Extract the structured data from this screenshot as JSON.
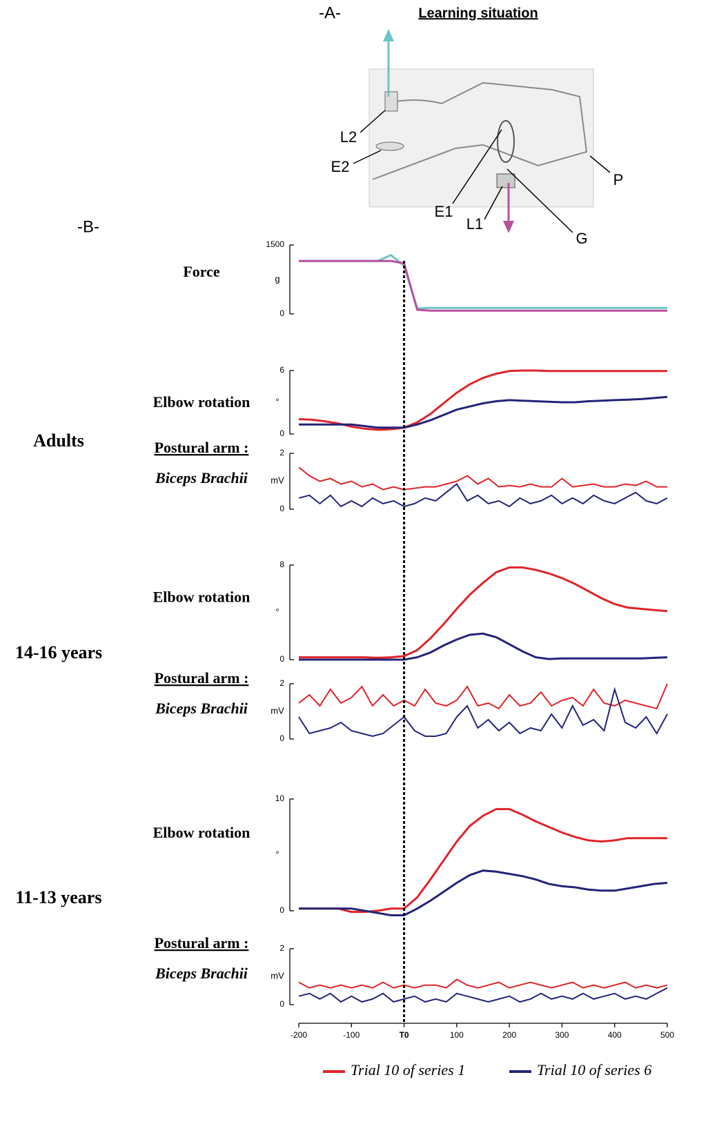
{
  "panel_a": {
    "label": "-A-",
    "title": "Learning situation",
    "labels": [
      "L2",
      "E2",
      "E1",
      "L1",
      "G",
      "P"
    ]
  },
  "panel_b": {
    "label": "-B-"
  },
  "chart_data": [
    {
      "type": "line",
      "title": "Force",
      "y_unit": "g",
      "ylim": [
        0,
        1500
      ],
      "yticks": [
        0,
        1500
      ],
      "x": [
        -200,
        -175,
        -150,
        -125,
        -100,
        -75,
        -50,
        -25,
        0,
        25,
        50,
        75,
        100,
        125,
        150,
        175,
        200,
        225,
        250,
        275,
        300,
        325,
        350,
        375,
        400,
        425,
        450,
        475,
        500
      ],
      "series": [
        {
          "color": "#6cc5c3",
          "values": [
            1150,
            1150,
            1150,
            1150,
            1150,
            1150,
            1150,
            1280,
            1050,
            120,
            130,
            130,
            130,
            130,
            130,
            130,
            130,
            130,
            130,
            130,
            130,
            130,
            130,
            130,
            130,
            130,
            130,
            130,
            130
          ]
        },
        {
          "color": "#b8509e",
          "values": [
            1150,
            1150,
            1150,
            1150,
            1150,
            1150,
            1150,
            1150,
            1100,
            90,
            70,
            70,
            70,
            70,
            70,
            70,
            70,
            70,
            70,
            70,
            70,
            70,
            70,
            70,
            70,
            70,
            70,
            70,
            70
          ]
        }
      ]
    },
    {
      "type": "line",
      "group": "Adults",
      "title": "Elbow rotation",
      "y_unit": "°",
      "ylim": [
        0,
        6
      ],
      "yticks": [
        0,
        6
      ],
      "x": [
        -200,
        -175,
        -150,
        -125,
        -100,
        -75,
        -50,
        -25,
        0,
        25,
        50,
        75,
        100,
        125,
        150,
        175,
        200,
        225,
        250,
        275,
        300,
        325,
        350,
        375,
        400,
        425,
        450,
        475,
        500
      ],
      "series": [
        {
          "color": "#e0232a",
          "values": [
            1.4,
            1.35,
            1.2,
            1.0,
            0.7,
            0.5,
            0.4,
            0.45,
            0.6,
            1.1,
            1.9,
            2.9,
            3.9,
            4.7,
            5.3,
            5.7,
            5.95,
            6.0,
            6.0,
            5.95,
            5.95,
            5.95,
            5.95,
            5.95,
            5.95,
            5.95,
            5.95,
            5.95,
            5.95
          ]
        },
        {
          "color": "#23237a",
          "values": [
            0.9,
            0.9,
            0.9,
            0.9,
            0.9,
            0.75,
            0.6,
            0.6,
            0.6,
            0.9,
            1.3,
            1.8,
            2.3,
            2.6,
            2.9,
            3.1,
            3.2,
            3.15,
            3.1,
            3.05,
            3.0,
            3.0,
            3.1,
            3.15,
            3.2,
            3.25,
            3.3,
            3.4,
            3.5
          ]
        }
      ]
    },
    {
      "type": "line",
      "title": "Postural arm :",
      "subtitle": "Biceps Brachii",
      "y_unit": "mV",
      "ylim": [
        0,
        2
      ],
      "yticks": [
        0,
        2
      ],
      "x": [
        -200,
        -180,
        -160,
        -140,
        -120,
        -100,
        -80,
        -60,
        -40,
        -20,
        0,
        20,
        40,
        60,
        80,
        100,
        120,
        140,
        160,
        180,
        200,
        220,
        240,
        260,
        280,
        300,
        320,
        340,
        360,
        380,
        400,
        420,
        440,
        460,
        480,
        500
      ],
      "series": [
        {
          "color": "#e0232a",
          "values": [
            1.5,
            1.2,
            1.0,
            1.1,
            0.9,
            1.0,
            0.8,
            0.9,
            0.7,
            0.8,
            0.7,
            0.75,
            0.8,
            0.8,
            0.9,
            1.0,
            1.2,
            0.9,
            1.1,
            0.8,
            0.85,
            0.8,
            0.9,
            0.8,
            0.8,
            1.1,
            0.8,
            0.85,
            0.9,
            0.8,
            0.8,
            0.9,
            0.85,
            1.0,
            0.8,
            0.8
          ]
        },
        {
          "color": "#23237a",
          "values": [
            0.4,
            0.5,
            0.2,
            0.5,
            0.1,
            0.3,
            0.1,
            0.4,
            0.2,
            0.3,
            0.1,
            0.2,
            0.4,
            0.3,
            0.6,
            0.9,
            0.3,
            0.5,
            0.2,
            0.3,
            0.1,
            0.4,
            0.2,
            0.3,
            0.5,
            0.2,
            0.4,
            0.2,
            0.5,
            0.3,
            0.2,
            0.4,
            0.6,
            0.3,
            0.2,
            0.4
          ]
        }
      ]
    },
    {
      "type": "line",
      "group": "14-16 years",
      "title": "Elbow rotation",
      "y_unit": "°",
      "ylim": [
        0,
        8
      ],
      "yticks": [
        0,
        8
      ],
      "x": [
        -200,
        -175,
        -150,
        -125,
        -100,
        -75,
        -50,
        -25,
        0,
        25,
        50,
        75,
        100,
        125,
        150,
        175,
        200,
        225,
        250,
        275,
        300,
        325,
        350,
        375,
        400,
        425,
        450,
        475,
        500
      ],
      "series": [
        {
          "color": "#e0232a",
          "values": [
            0.2,
            0.2,
            0.2,
            0.2,
            0.2,
            0.2,
            0.15,
            0.2,
            0.3,
            0.8,
            1.8,
            3.0,
            4.3,
            5.5,
            6.5,
            7.4,
            7.8,
            7.8,
            7.6,
            7.3,
            6.9,
            6.4,
            5.8,
            5.2,
            4.7,
            4.4,
            4.3,
            4.2,
            4.1
          ]
        },
        {
          "color": "#23237a",
          "values": [
            0,
            0,
            0,
            0,
            0,
            0,
            0,
            0,
            0,
            0.2,
            0.6,
            1.2,
            1.7,
            2.1,
            2.2,
            1.9,
            1.3,
            0.7,
            0.2,
            0.05,
            0.1,
            0.1,
            0.1,
            0.1,
            0.1,
            0.1,
            0.1,
            0.15,
            0.2
          ]
        }
      ]
    },
    {
      "type": "line",
      "title": "Postural arm :",
      "subtitle": "Biceps Brachii",
      "y_unit": "mV",
      "ylim": [
        0,
        2
      ],
      "yticks": [
        0,
        2
      ],
      "x": [
        -200,
        -180,
        -160,
        -140,
        -120,
        -100,
        -80,
        -60,
        -40,
        -20,
        0,
        20,
        40,
        60,
        80,
        100,
        120,
        140,
        160,
        180,
        200,
        220,
        240,
        260,
        280,
        300,
        320,
        340,
        360,
        380,
        400,
        420,
        440,
        460,
        480,
        500
      ],
      "series": [
        {
          "color": "#e0232a",
          "values": [
            1.3,
            1.6,
            1.2,
            1.8,
            1.3,
            1.5,
            1.9,
            1.2,
            1.6,
            1.2,
            1.4,
            1.2,
            1.8,
            1.3,
            1.2,
            1.4,
            1.9,
            1.2,
            1.3,
            1.1,
            1.6,
            1.2,
            1.3,
            1.7,
            1.2,
            1.4,
            1.5,
            1.2,
            1.8,
            1.3,
            1.2,
            1.4,
            1.3,
            1.2,
            1.1,
            2.0
          ]
        },
        {
          "color": "#23237a",
          "values": [
            0.8,
            0.2,
            0.3,
            0.4,
            0.6,
            0.3,
            0.2,
            0.1,
            0.2,
            0.5,
            0.8,
            0.3,
            0.1,
            0.1,
            0.2,
            0.8,
            1.2,
            0.4,
            0.7,
            0.3,
            0.6,
            0.2,
            0.4,
            0.3,
            0.9,
            0.4,
            1.2,
            0.5,
            0.7,
            0.3,
            1.8,
            0.6,
            0.4,
            0.8,
            0.2,
            0.9
          ]
        }
      ]
    },
    {
      "type": "line",
      "group": "11-13 years",
      "title": "Elbow rotation",
      "y_unit": "°",
      "ylim": [
        0,
        10
      ],
      "yticks": [
        0,
        10
      ],
      "x": [
        -200,
        -175,
        -150,
        -125,
        -100,
        -75,
        -50,
        -25,
        0,
        25,
        50,
        75,
        100,
        125,
        150,
        175,
        200,
        225,
        250,
        275,
        300,
        325,
        350,
        375,
        400,
        425,
        450,
        475,
        500
      ],
      "series": [
        {
          "color": "#e0232a",
          "values": [
            0.2,
            0.2,
            0.2,
            0.2,
            -0.1,
            -0.1,
            0,
            0.2,
            0.2,
            1.2,
            2.8,
            4.5,
            6.2,
            7.6,
            8.5,
            9.1,
            9.1,
            8.6,
            8.0,
            7.5,
            7.0,
            6.6,
            6.3,
            6.2,
            6.3,
            6.5,
            6.5,
            6.5,
            6.5
          ]
        },
        {
          "color": "#23237a",
          "values": [
            0.2,
            0.2,
            0.2,
            0.2,
            0.2,
            0,
            -0.2,
            -0.4,
            -0.4,
            0.2,
            0.9,
            1.7,
            2.5,
            3.2,
            3.6,
            3.5,
            3.3,
            3.1,
            2.8,
            2.4,
            2.2,
            2.1,
            1.9,
            1.8,
            1.8,
            2.0,
            2.2,
            2.4,
            2.5
          ]
        }
      ]
    },
    {
      "type": "line",
      "title": "Postural arm :",
      "subtitle": "Biceps Brachii",
      "y_unit": "mV",
      "ylim": [
        0,
        2
      ],
      "yticks": [
        0,
        2
      ],
      "xlim": [
        -200,
        500
      ],
      "xticks": [
        -200,
        -100,
        {
          "value": 0,
          "label": "T0"
        },
        100,
        200,
        300,
        400,
        500
      ],
      "x": [
        -200,
        -180,
        -160,
        -140,
        -120,
        -100,
        -80,
        -60,
        -40,
        -20,
        0,
        20,
        40,
        60,
        80,
        100,
        120,
        140,
        160,
        180,
        200,
        220,
        240,
        260,
        280,
        300,
        320,
        340,
        360,
        380,
        400,
        420,
        440,
        460,
        480,
        500
      ],
      "series": [
        {
          "name": "Trial 10 of series 1",
          "color": "#e0232a",
          "values": [
            0.8,
            0.6,
            0.7,
            0.6,
            0.7,
            0.6,
            0.7,
            0.6,
            0.8,
            0.6,
            0.7,
            0.6,
            0.7,
            0.7,
            0.6,
            0.9,
            0.7,
            0.6,
            0.7,
            0.8,
            0.6,
            0.7,
            0.8,
            0.7,
            0.6,
            0.7,
            0.8,
            0.6,
            0.7,
            0.6,
            0.7,
            0.8,
            0.6,
            0.7,
            0.6,
            0.7
          ]
        },
        {
          "name": "Trial 10 of series 6",
          "color": "#23237a",
          "values": [
            0.3,
            0.4,
            0.2,
            0.4,
            0.1,
            0.3,
            0.1,
            0.2,
            0.4,
            0.1,
            0.2,
            0.3,
            0.1,
            0.2,
            0.1,
            0.4,
            0.3,
            0.2,
            0.1,
            0.2,
            0.3,
            0.1,
            0.2,
            0.4,
            0.2,
            0.3,
            0.2,
            0.4,
            0.2,
            0.3,
            0.4,
            0.2,
            0.3,
            0.2,
            0.4,
            0.6
          ]
        }
      ]
    }
  ]
}
